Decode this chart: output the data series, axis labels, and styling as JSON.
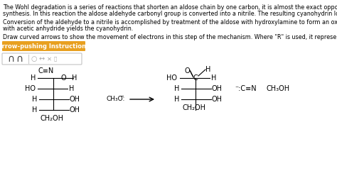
{
  "bg_color": "#ffffff",
  "text_color": "#000000",
  "para1_line1": "The Wohl degradation is a series of reactions that shorten an aldose chain by one carbon, it is almost the exact opposite of the Kiliani-Fischer",
  "para1_line2": "synthesis. In this reaction the aldose aldehyde carbonyl group is converted into a nitrile. The resulting cyanohydrin loses HCN under basic conditions.",
  "para2_line1": "Conversion of the aldehyde to a nitrile is accomplished by treatment of the aldose with hydroxylamine to form an oxime. Dehydration of the oxime",
  "para2_line2": "with acetic anhydride yields the cyanohydrin.",
  "para3": "Draw curved arrows to show the movement of electrons in this step of the mechanism. Where \"R\" is used, it represents the rest of the sugar chain.",
  "button_text": "Arrow-pushing Instructions",
  "button_bg": "#e8a020",
  "button_text_color": "#ffffff",
  "font_size_para": 5.8,
  "font_size_button": 6.0,
  "font_size_chem": 7.0
}
